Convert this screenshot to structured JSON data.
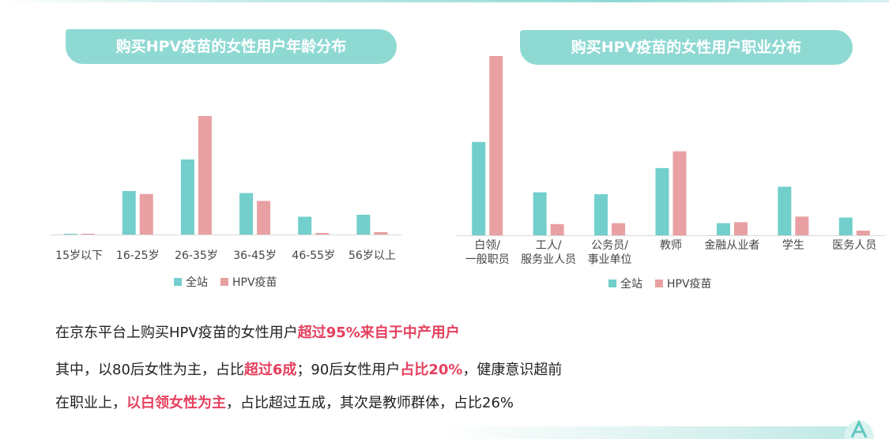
{
  "titles": {
    "left": "购买HPV疫苗的女性用户年龄分布",
    "right": "购买HPV疫苗的女性用户职业分布"
  },
  "colors": {
    "full_site": "#72cfcb",
    "hpv": "#e8a0a2",
    "highlight": "#e5405e",
    "pill": "#8fd9d3"
  },
  "chart_data": [
    {
      "type": "bar",
      "categories": [
        [
          "15岁以下"
        ],
        [
          "16-25岁"
        ],
        [
          "26-35岁"
        ],
        [
          "36-45岁"
        ],
        [
          "46-55岁"
        ],
        [
          "56岁以上"
        ]
      ],
      "series": [
        {
          "name": "全站",
          "values": [
            0.3,
            22,
            38,
            21,
            9,
            10
          ]
        },
        {
          "name": "HPV疫苗",
          "values": [
            0.2,
            20.5,
            60,
            17,
            0.8,
            1.2
          ]
        }
      ],
      "ylim": [
        0,
        60
      ],
      "legend_position": "bottom-center",
      "grid": false
    },
    {
      "type": "bar",
      "categories": [
        [
          "白领/",
          "一般职员"
        ],
        [
          "工人/",
          "服务业人员"
        ],
        [
          "公务员/",
          "事业单位"
        ],
        [
          "教师"
        ],
        [
          "金融从业者"
        ],
        [
          "学生"
        ],
        [
          "医务人员"
        ]
      ],
      "series": [
        {
          "name": "全站",
          "values": [
            50,
            23,
            22,
            36,
            6.5,
            26,
            9.5
          ]
        },
        {
          "name": "HPV疫苗",
          "values": [
            96,
            6,
            6.5,
            45,
            7,
            10,
            2.5
          ]
        }
      ],
      "ylim": [
        0,
        96
      ],
      "legend_position": "bottom-center",
      "grid": false
    }
  ],
  "notes": {
    "line1": {
      "a": "在京东平台上购买HPV疫苗的女性用户",
      "b": "超过95%来自于中产用户"
    },
    "line2": {
      "a": "其中，以80后女性为主，占比",
      "b": "超过6成",
      "c": "；90后女性用户",
      "d": "占比20%",
      "e": "，健康意识超前"
    },
    "line3": {
      "a": "在职业上，",
      "b": "以白领女性为主",
      "c": "，占比超过五成，其次是教师群体，占比26%"
    }
  }
}
